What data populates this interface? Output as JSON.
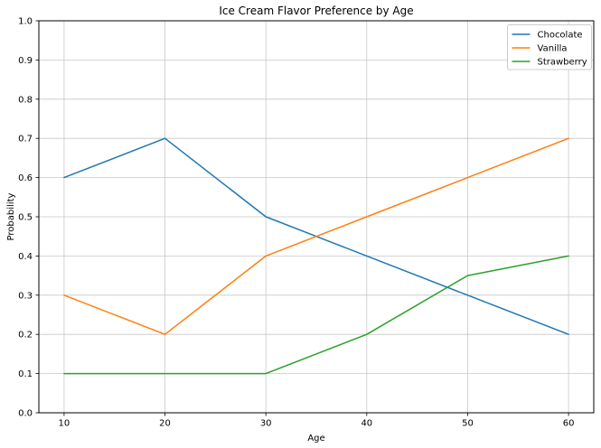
{
  "figure": {
    "background": "#ffffff"
  },
  "chart_data": {
    "type": "line",
    "title": "Ice Cream Flavor Preference by Age",
    "xlabel": "Age",
    "ylabel": "Probability",
    "x": [
      10,
      20,
      30,
      40,
      50,
      60
    ],
    "series": [
      {
        "name": "Chocolate",
        "color": "#1f77b4",
        "values": [
          0.6,
          0.7,
          0.5,
          0.4,
          0.3,
          0.2
        ]
      },
      {
        "name": "Vanilla",
        "color": "#ff7f0e",
        "values": [
          0.3,
          0.2,
          0.4,
          0.5,
          0.6,
          0.7
        ]
      },
      {
        "name": "Strawberry",
        "color": "#2ca02c",
        "values": [
          0.1,
          0.1,
          0.1,
          0.2,
          0.35,
          0.4
        ]
      }
    ],
    "xlim": [
      7.5,
      62.5
    ],
    "ylim": [
      0.0,
      1.0
    ],
    "xticks": {
      "values": [
        10,
        20,
        30,
        40,
        50,
        60
      ],
      "labels": [
        "10",
        "20",
        "30",
        "40",
        "50",
        "60"
      ]
    },
    "yticks": {
      "values": [
        0.0,
        0.1,
        0.2,
        0.3,
        0.4,
        0.5,
        0.6,
        0.7,
        0.8,
        0.9,
        1.0
      ],
      "labels": [
        "0.0",
        "0.1",
        "0.2",
        "0.3",
        "0.4",
        "0.5",
        "0.6",
        "0.7",
        "0.8",
        "0.9",
        "1.0"
      ]
    },
    "grid": true,
    "grid_color": "#c8c8c8",
    "spine_color": "#000000",
    "tick_color": "#000000",
    "legend": {
      "position": "upper-right",
      "entries": [
        "Chocolate",
        "Vanilla",
        "Strawberry"
      ],
      "border_color": "#cccccc",
      "background": "#ffffff"
    }
  }
}
